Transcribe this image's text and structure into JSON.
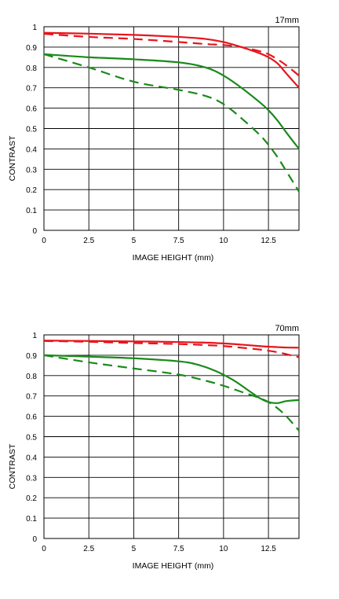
{
  "chart_data": [
    {
      "type": "line",
      "title": "17mm",
      "xlabel": "IMAGE HEIGHT (mm)",
      "ylabel": "CONTRAST",
      "xlim": [
        0,
        14.2
      ],
      "ylim": [
        0,
        1
      ],
      "x_ticks": [
        0,
        2.5,
        5,
        7.5,
        10,
        12.5
      ],
      "x_tick_labels": [
        "0",
        "2.5",
        "5",
        "7.5",
        "10",
        "12.5"
      ],
      "y_ticks": [
        0,
        0.1,
        0.2,
        0.3,
        0.4,
        0.5,
        0.6,
        0.7,
        0.8,
        0.9,
        1
      ],
      "y_tick_labels": [
        "0",
        "0.1",
        "0.2",
        "0.3",
        "0.4",
        "0.5",
        "0.6",
        "0.7",
        "0.8",
        "0.9",
        "1"
      ],
      "grid": true,
      "series": [
        {
          "color": "#e8141c",
          "dash": false,
          "x": [
            0,
            2.5,
            5,
            7.5,
            9,
            10,
            11,
            12,
            12.5,
            13,
            13.5,
            14.2
          ],
          "y": [
            0.97,
            0.966,
            0.96,
            0.95,
            0.94,
            0.925,
            0.9,
            0.87,
            0.85,
            0.82,
            0.77,
            0.7
          ]
        },
        {
          "color": "#e8141c",
          "dash": true,
          "x": [
            0,
            2.5,
            5,
            7.5,
            9,
            10,
            11,
            12,
            12.5,
            13,
            13.5,
            14.2
          ],
          "y": [
            0.965,
            0.95,
            0.94,
            0.925,
            0.915,
            0.91,
            0.9,
            0.88,
            0.865,
            0.84,
            0.81,
            0.76
          ]
        },
        {
          "color": "#1a8a1a",
          "dash": false,
          "x": [
            0,
            2.5,
            5,
            7.5,
            9,
            10,
            11,
            12,
            12.5,
            13,
            13.5,
            14.2
          ],
          "y": [
            0.865,
            0.85,
            0.84,
            0.825,
            0.8,
            0.76,
            0.7,
            0.63,
            0.59,
            0.54,
            0.48,
            0.4
          ]
        },
        {
          "color": "#1a8a1a",
          "dash": true,
          "x": [
            0,
            2.5,
            5,
            7.5,
            9,
            10,
            11,
            12,
            12.5,
            13,
            13.5,
            14.2
          ],
          "y": [
            0.865,
            0.8,
            0.73,
            0.69,
            0.66,
            0.62,
            0.55,
            0.47,
            0.42,
            0.36,
            0.29,
            0.19
          ]
        }
      ]
    },
    {
      "type": "line",
      "title": "70mm",
      "xlabel": "IMAGE HEIGHT (mm)",
      "ylabel": "CONTRAST",
      "xlim": [
        0,
        14.2
      ],
      "ylim": [
        0,
        1
      ],
      "x_ticks": [
        0,
        2.5,
        5,
        7.5,
        10,
        12.5
      ],
      "x_tick_labels": [
        "0",
        "2.5",
        "5",
        "7.5",
        "10",
        "12.5"
      ],
      "y_ticks": [
        0,
        0.1,
        0.2,
        0.3,
        0.4,
        0.5,
        0.6,
        0.7,
        0.8,
        0.9,
        1
      ],
      "y_tick_labels": [
        "0",
        "0.1",
        "0.2",
        "0.3",
        "0.4",
        "0.5",
        "0.6",
        "0.7",
        "0.8",
        "0.9",
        "1"
      ],
      "grid": true,
      "series": [
        {
          "color": "#e8141c",
          "dash": false,
          "x": [
            0,
            2.5,
            5,
            7.5,
            9,
            10,
            11,
            12,
            12.5,
            13,
            13.5,
            14.2
          ],
          "y": [
            0.972,
            0.97,
            0.968,
            0.965,
            0.962,
            0.958,
            0.952,
            0.945,
            0.942,
            0.94,
            0.938,
            0.937
          ]
        },
        {
          "color": "#e8141c",
          "dash": true,
          "x": [
            0,
            2.5,
            5,
            7.5,
            9,
            10,
            11,
            12,
            12.5,
            13,
            13.5,
            14.2
          ],
          "y": [
            0.97,
            0.966,
            0.96,
            0.955,
            0.95,
            0.945,
            0.937,
            0.928,
            0.922,
            0.915,
            0.905,
            0.89
          ]
        },
        {
          "color": "#1a8a1a",
          "dash": false,
          "x": [
            0,
            2.5,
            5,
            7.5,
            8.5,
            9.5,
            10.5,
            11.5,
            12,
            12.5,
            13,
            13.5,
            14.2
          ],
          "y": [
            0.9,
            0.893,
            0.885,
            0.87,
            0.855,
            0.825,
            0.78,
            0.72,
            0.69,
            0.67,
            0.665,
            0.675,
            0.68
          ]
        },
        {
          "color": "#1a8a1a",
          "dash": true,
          "x": [
            0,
            2.5,
            5,
            7.5,
            9,
            10,
            11,
            12,
            12.5,
            13,
            13.5,
            14.2
          ],
          "y": [
            0.9,
            0.865,
            0.835,
            0.805,
            0.775,
            0.75,
            0.72,
            0.69,
            0.67,
            0.64,
            0.6,
            0.53
          ]
        }
      ]
    }
  ]
}
